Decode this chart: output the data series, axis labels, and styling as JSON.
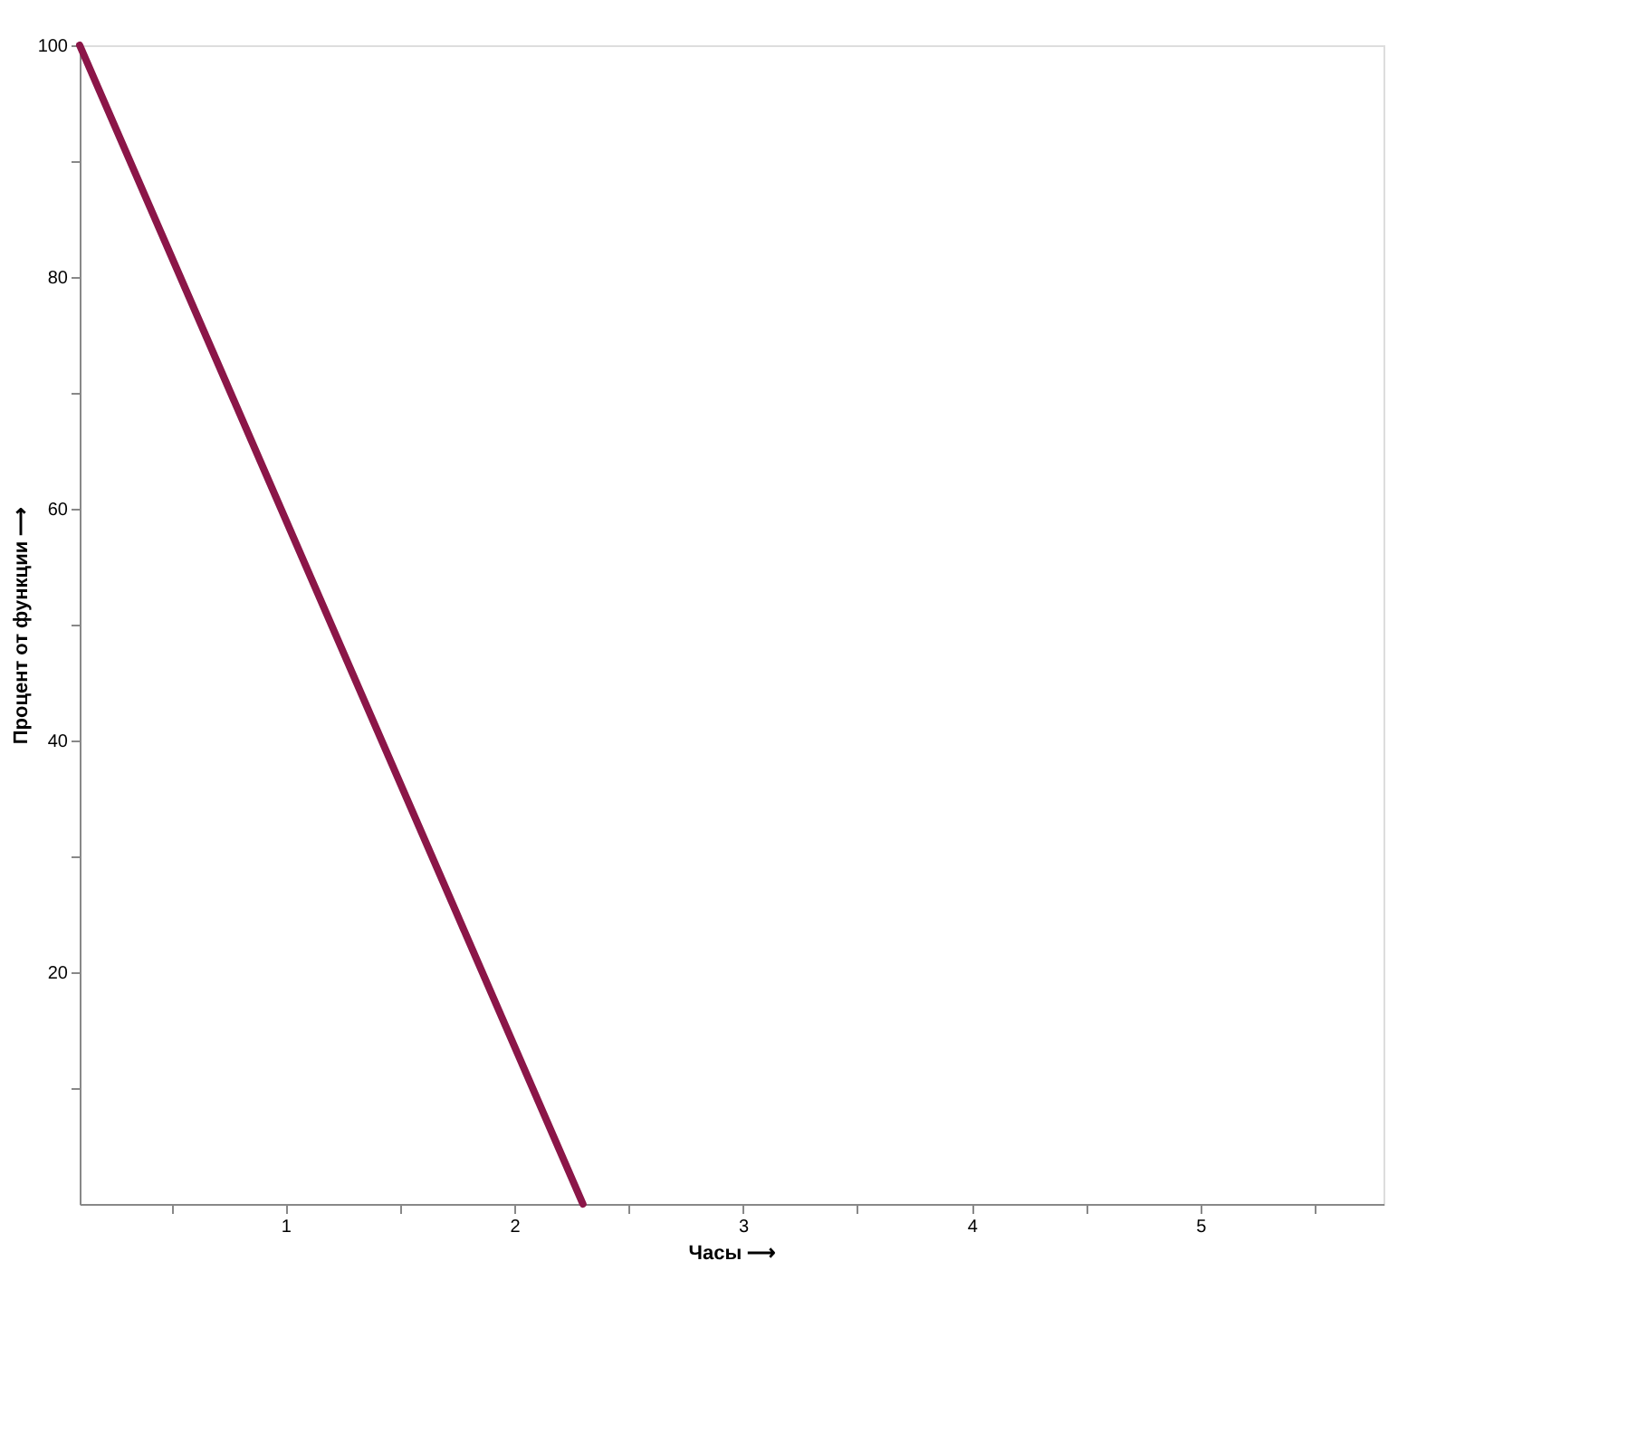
{
  "chart_data": {
    "type": "line",
    "xlabel": "Часы ⟶",
    "ylabel": "Процент от функции ⟶",
    "x": [
      0.1,
      2.3
    ],
    "series": [
      {
        "color": "#8b1648",
        "values": [
          100,
          0
        ]
      }
    ],
    "xlim": [
      0.1,
      5.8
    ],
    "ylim": [
      0,
      100
    ],
    "xticks": [
      {
        "value": 0.5,
        "label": null
      },
      1,
      {
        "value": 1.5,
        "label": null
      },
      2,
      {
        "value": 2.5,
        "label": null
      },
      3,
      {
        "value": 3.5,
        "label": null
      },
      4,
      {
        "value": 4.5,
        "label": null
      },
      5,
      {
        "value": 5.5,
        "label": null
      }
    ],
    "yticks": [
      {
        "value": 10,
        "label": null
      },
      20,
      {
        "value": 30,
        "label": null
      },
      40,
      {
        "value": 50,
        "label": null
      },
      60,
      {
        "value": 70,
        "label": null
      },
      80,
      {
        "value": 90,
        "label": null
      },
      100
    ],
    "grid": false,
    "legend": false,
    "marker": "none",
    "line_style": "solid"
  }
}
